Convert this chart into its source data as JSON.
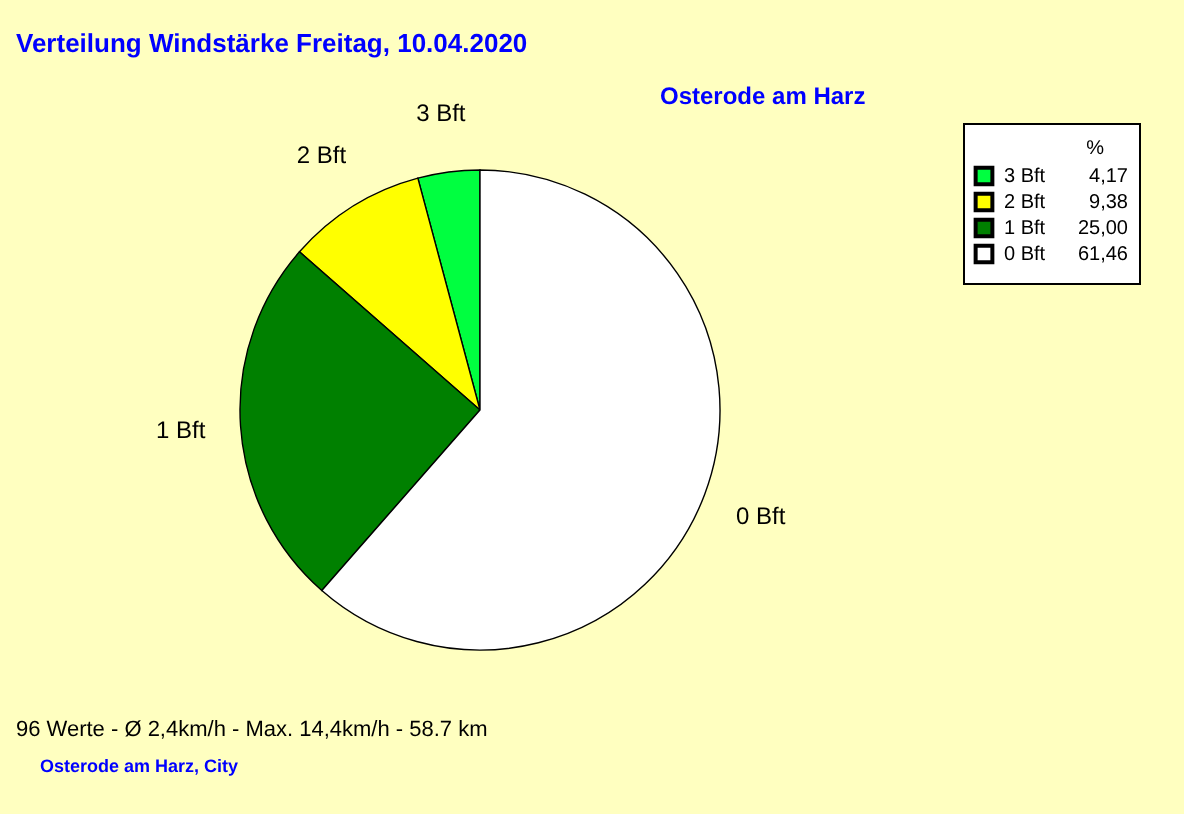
{
  "chart_data": {
    "type": "pie",
    "title": "Verteilung Windstärke  Freitag, 10.04.2020",
    "subtitle": "Osterode am Harz",
    "categories": [
      "3 Bft",
      "2 Bft",
      "1 Bft",
      "0 Bft"
    ],
    "values": [
      4.17,
      9.38,
      25.0,
      61.46
    ],
    "value_labels": [
      "4,17",
      "9,38",
      "25,00",
      "61,46"
    ],
    "colors": [
      "#00ff40",
      "#ffff00",
      "#008000",
      "#ffffff"
    ],
    "legend_title": "%",
    "legend": "top right",
    "annotations": [
      "96 Werte   -   Ø 2,4km/h  -  Max. 14,4km/h   -   58.7 km",
      "Osterode am Harz, City"
    ]
  }
}
